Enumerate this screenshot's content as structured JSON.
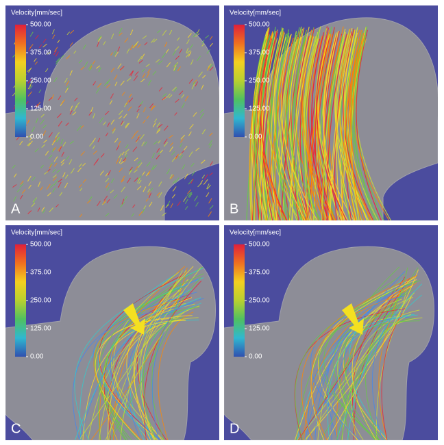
{
  "panels": [
    {
      "label": "A",
      "colorbar": {
        "title": "Velocity[mm/sec]",
        "ticks": [
          {
            "value": 500,
            "label": "500.00"
          },
          {
            "value": 375,
            "label": "375.00"
          },
          {
            "value": 250,
            "label": "250.00"
          },
          {
            "value": 125,
            "label": "125.00"
          },
          {
            "value": 0,
            "label": "0.00"
          }
        ]
      }
    },
    {
      "label": "B",
      "colorbar": {
        "title": "Velocity[mm/sec]",
        "ticks": [
          {
            "value": 500,
            "label": "500.00"
          },
          {
            "value": 375,
            "label": "375.00"
          },
          {
            "value": 250,
            "label": "250.00"
          },
          {
            "value": 125,
            "label": "125.00"
          },
          {
            "value": 0,
            "label": "0.00"
          }
        ]
      }
    },
    {
      "label": "C",
      "colorbar": {
        "title": "Velocity[mm/sec]",
        "ticks": [
          {
            "value": 500,
            "label": "500.00"
          },
          {
            "value": 375,
            "label": "375.00"
          },
          {
            "value": 250,
            "label": "250.00"
          },
          {
            "value": 125,
            "label": "125.00"
          },
          {
            "value": 0,
            "label": "0.00"
          }
        ]
      }
    },
    {
      "label": "D",
      "colorbar": {
        "title": "Velocity[mm/sec]",
        "ticks": [
          {
            "value": 500,
            "label": "500.00"
          },
          {
            "value": 375,
            "label": "375.00"
          },
          {
            "value": 250,
            "label": "250.00"
          },
          {
            "value": 125,
            "label": "125.00"
          },
          {
            "value": 0,
            "label": "0.00"
          }
        ]
      }
    }
  ]
}
